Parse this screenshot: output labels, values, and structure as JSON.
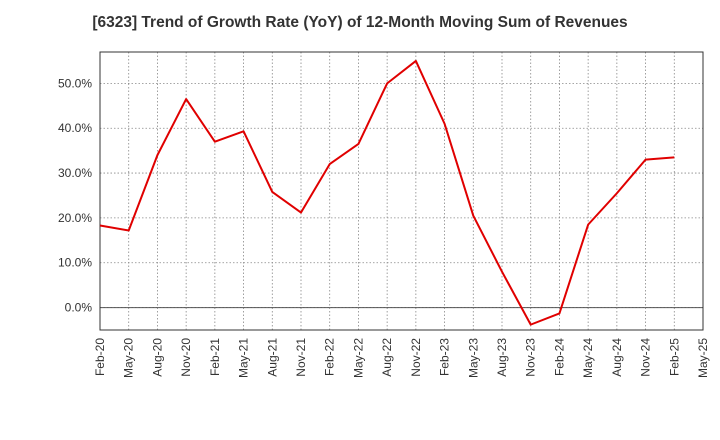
{
  "chart_data": {
    "type": "line",
    "title": "[6323]  Trend of Growth Rate (YoY) of 12-Month Moving Sum of Revenues",
    "xlabel": "",
    "ylabel": "",
    "x_tick_labels": [
      "Feb-20",
      "May-20",
      "Aug-20",
      "Nov-20",
      "Feb-21",
      "May-21",
      "Aug-21",
      "Nov-21",
      "Feb-22",
      "May-22",
      "Aug-22",
      "Nov-22",
      "Feb-23",
      "May-23",
      "Aug-23",
      "Nov-23",
      "Feb-24",
      "May-24",
      "Aug-24",
      "Nov-24",
      "Feb-25",
      "May-25"
    ],
    "y_tick_labels": [
      "0.0%",
      "10.0%",
      "20.0%",
      "30.0%",
      "40.0%",
      "50.0%"
    ],
    "y_tick_values": [
      0,
      10,
      20,
      30,
      40,
      50
    ],
    "ylim": [
      -5,
      57
    ],
    "grid": true,
    "line_color": "#e00000",
    "series": [
      {
        "x": [
          "Feb-20",
          "May-20",
          "Aug-20",
          "Nov-20",
          "Feb-21",
          "May-21",
          "Aug-21",
          "Nov-21",
          "Feb-22",
          "May-22",
          "Aug-22",
          "Nov-22",
          "Feb-23",
          "May-23",
          "Aug-23",
          "Nov-23",
          "Feb-24",
          "May-24",
          "Aug-24",
          "Nov-24",
          "Feb-25"
        ],
        "values": [
          18.3,
          17.2,
          34.0,
          46.5,
          37.0,
          39.3,
          25.8,
          21.2,
          32.0,
          36.5,
          50.0,
          55.0,
          41.0,
          20.5,
          8.0,
          -3.8,
          -1.3,
          18.5,
          25.5,
          33.0,
          33.5
        ]
      }
    ]
  }
}
